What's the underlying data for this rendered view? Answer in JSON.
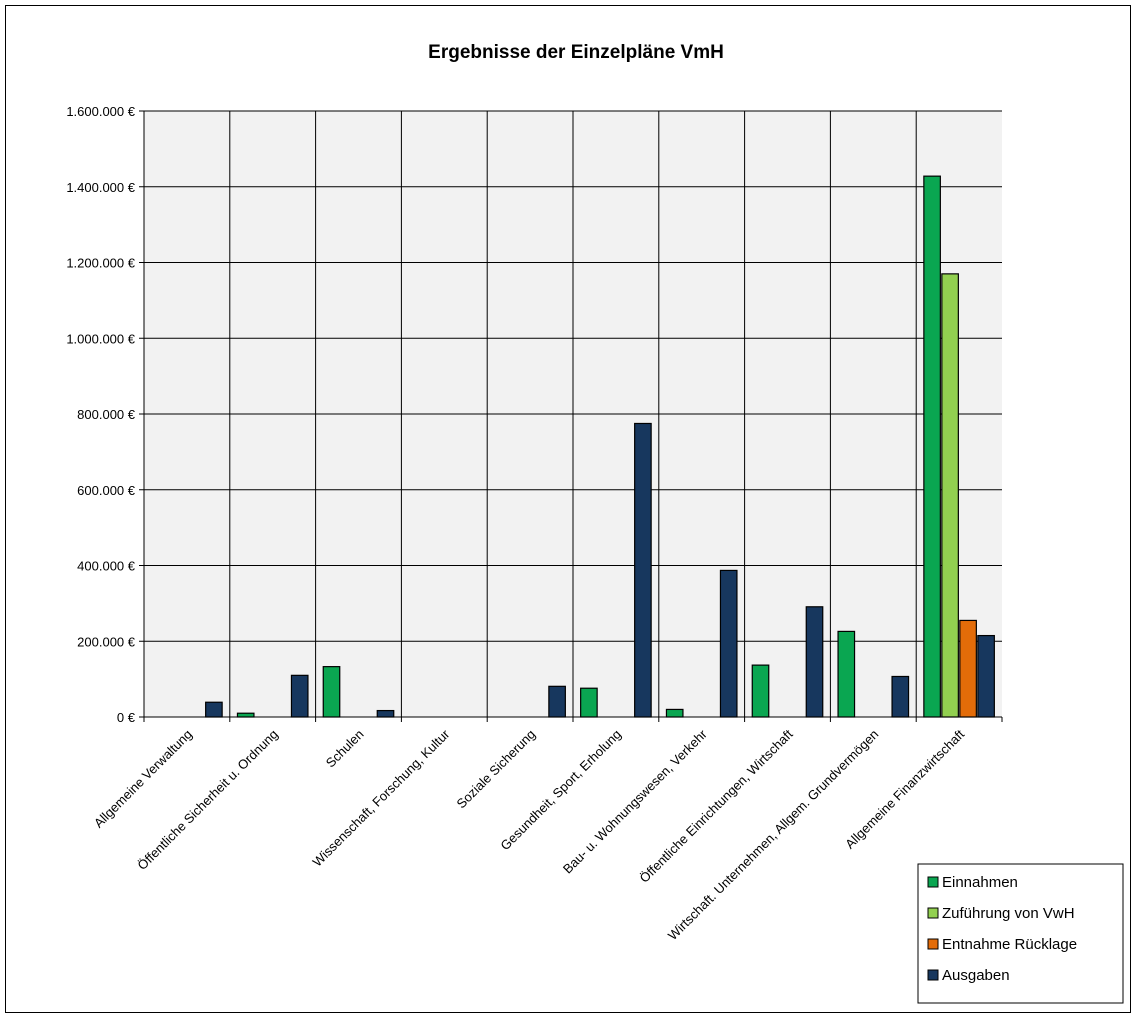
{
  "chart_data": {
    "type": "bar",
    "title": "Ergebnisse der Einzelpläne VmH",
    "xlabel": "",
    "ylabel": "",
    "ylim": [
      0,
      1600000
    ],
    "yticks": [
      "0 €",
      "200.000 €",
      "400.000 €",
      "600.000 €",
      "800.000 €",
      "1.000.000 €",
      "1.200.000 €",
      "1.400.000 €",
      "1.600.000 €"
    ],
    "grid": true,
    "legend_position": "bottom-right",
    "categories": [
      "Allgemeine Verwaltung",
      "Öffentliche Sicherheit u. Ordnung",
      "Schulen",
      "Wissenschaft, Forschung, Kultur",
      "Soziale Sicherung",
      "Gesundheit, Sport, Erholung",
      "Bau- u. Wohnungswesen, Verkehr",
      "Öffentliche Einrichtungen, Wirtschaft",
      "Wirtschaft. Unternehmen, Allgem. Grundvermögen",
      "Allgemeine Finanzwirtschaft"
    ],
    "series": [
      {
        "name": "Einnahmen",
        "color": "#0aa651",
        "values": [
          0,
          10000,
          133000,
          0,
          0,
          76000,
          20000,
          137000,
          226000,
          1428000
        ]
      },
      {
        "name": "Zuführung von VwH",
        "color": "#92d050",
        "values": [
          0,
          0,
          0,
          0,
          0,
          0,
          0,
          0,
          0,
          1170000
        ]
      },
      {
        "name": "Entnahme Rücklage",
        "color": "#e36c09",
        "values": [
          0,
          0,
          0,
          0,
          0,
          0,
          0,
          0,
          0,
          255000
        ]
      },
      {
        "name": "Ausgaben",
        "color": "#17375e",
        "values": [
          39000,
          110000,
          17000,
          0,
          81000,
          775000,
          387000,
          291000,
          107000,
          215000
        ]
      }
    ]
  }
}
